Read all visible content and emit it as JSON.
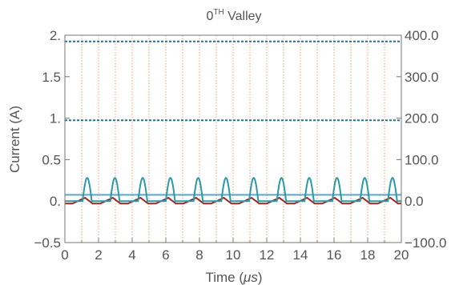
{
  "chart_data": {
    "type": "line",
    "title_main": "0",
    "title_sup": "TH",
    "title_rest": " Valley",
    "xlabel_prefix": "Time (",
    "xlabel_unit": "μs",
    "xlabel_suffix": ")",
    "ylabel": "Current (A)",
    "xlim": [
      0,
      20
    ],
    "ylim": [
      -0.5,
      2.0
    ],
    "y2lim": [
      -100.0,
      400.0
    ],
    "x_ticks": [
      "0",
      "2",
      "4",
      "6",
      "8",
      "10",
      "12",
      "14",
      "16",
      "18",
      "20"
    ],
    "y_ticks": [
      "−0.5",
      "0.",
      "0.5",
      "1.",
      "1.5",
      "2."
    ],
    "y2_ticks": [
      "−100.0",
      "0.0",
      "100.0",
      "200.0",
      "300.0",
      "400.0"
    ],
    "grid": "vertical, dotted orange",
    "period_us": 1.65,
    "pulse_start_us": 1.05,
    "pulse_width_us": 0.55,
    "series": [
      {
        "id": "dashed-upper",
        "style": "dashed",
        "color": "#2a6f8f",
        "y2_value": 385
      },
      {
        "id": "dashed-lower",
        "style": "dashed",
        "color": "#2a6f8f",
        "y2_value": 195
      },
      {
        "id": "flat-line",
        "style": "solid",
        "color": "#5aa6c4",
        "y2_value": 15
      },
      {
        "id": "pulse-current",
        "style": "solid",
        "color": "#2a9aa8",
        "peak_A": 0.28,
        "base_A": 0.0
      },
      {
        "id": "ripple-current",
        "style": "solid",
        "color": "#9b2a22",
        "min_A": -0.03,
        "max_A": 0.04
      }
    ]
  }
}
